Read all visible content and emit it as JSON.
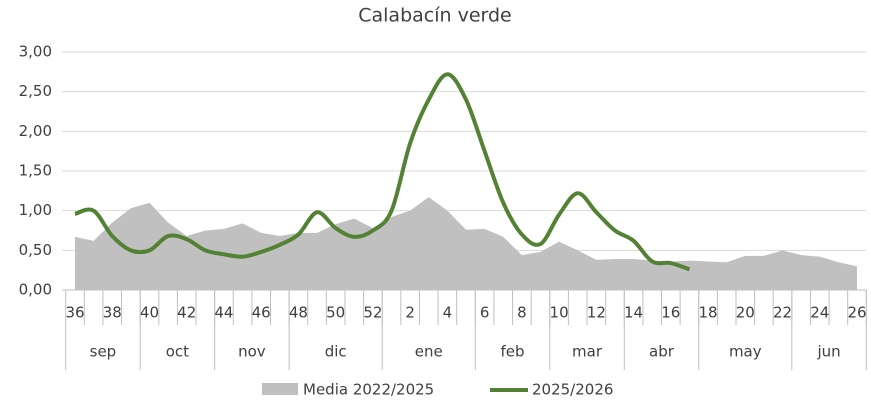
{
  "chart_data": {
    "type": "area_line",
    "title": "Calabacín verde",
    "categories": [
      "36",
      null,
      "38",
      null,
      "40",
      null,
      "42",
      null,
      "44",
      null,
      "46",
      null,
      "48",
      null,
      "50",
      null,
      "52",
      null,
      "2",
      null,
      "4",
      null,
      "6",
      null,
      "8",
      null,
      "10",
      null,
      "12",
      null,
      "14",
      null,
      "16",
      null,
      "18",
      null,
      "20",
      null,
      "22",
      null,
      "24",
      null,
      "26"
    ],
    "groups": [
      "sep",
      "oct",
      "nov",
      "dic",
      "ene",
      "feb",
      "mar",
      "abr",
      "may",
      "jun"
    ],
    "series": [
      {
        "name": "Media 2022/2025",
        "color": "#c0c0c0",
        "kind": "area",
        "values": [
          0.67,
          0.62,
          0.85,
          1.03,
          1.1,
          0.85,
          0.68,
          0.75,
          0.77,
          0.84,
          0.72,
          0.68,
          0.72,
          0.72,
          0.83,
          0.9,
          0.78,
          0.92,
          1.0,
          1.17,
          1.0,
          0.76,
          0.77,
          0.67,
          0.44,
          0.48,
          0.61,
          0.5,
          0.38,
          0.39,
          0.39,
          0.37,
          0.36,
          0.37,
          0.36,
          0.35,
          0.43,
          0.43,
          0.5,
          0.44,
          0.42,
          0.35,
          0.3
        ]
      },
      {
        "name": "2025/2026",
        "color": "#548235",
        "kind": "line",
        "values": [
          0.96,
          1.0,
          0.68,
          0.5,
          0.5,
          0.68,
          0.64,
          0.5,
          0.45,
          0.42,
          0.48,
          0.57,
          0.7,
          0.98,
          0.78,
          0.67,
          0.75,
          1.0,
          1.85,
          2.4,
          2.72,
          2.4,
          1.75,
          1.1,
          0.7,
          0.58,
          0.95,
          1.22,
          0.98,
          0.75,
          0.62,
          0.36,
          0.34,
          0.26,
          null,
          null,
          null,
          null,
          null,
          null,
          null,
          null,
          null
        ]
      }
    ],
    "ylim": [
      0,
      3
    ],
    "yticks": [
      {
        "value": 0,
        "label": "0,00"
      },
      {
        "value": 0.5,
        "label": "0,50"
      },
      {
        "value": 1,
        "label": "1,00"
      },
      {
        "value": 1.5,
        "label": "1,50"
      },
      {
        "value": 2,
        "label": "2,00"
      },
      {
        "value": 2.5,
        "label": "2,50"
      },
      {
        "value": 3,
        "label": "3,00"
      }
    ],
    "grid": true,
    "legend": "bottom"
  }
}
